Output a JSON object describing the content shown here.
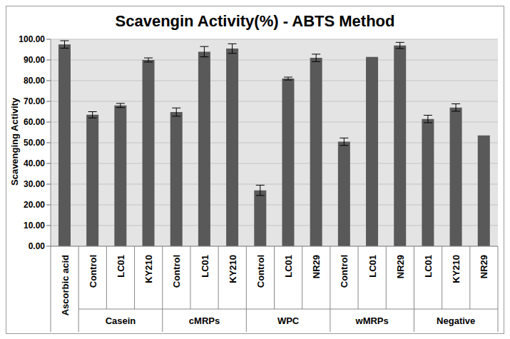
{
  "chart_data": {
    "type": "bar",
    "title": "Scavengin Activity(%) - ABTS Method",
    "y_label": "Scavenging Activity",
    "categories": [
      "Ascorbic acid",
      "Control",
      "LC01",
      "KY210",
      "Control",
      "LC01",
      "KY210",
      "Control",
      "LC01",
      "NR29",
      "Control",
      "LC01",
      "NR29",
      "LC01",
      "KY210",
      "NR29"
    ],
    "groups": [
      null,
      "Casein",
      "Casein",
      "Casein",
      "cMRPs",
      "cMRPs",
      "cMRPs",
      "WPC",
      "WPC",
      "WPC",
      "wMRPs",
      "wMRPs",
      "wMRPs",
      "Negative",
      "Negative",
      "Negative"
    ],
    "values": [
      97.5,
      63.5,
      68,
      90,
      64.8,
      94,
      95.5,
      27,
      81,
      91,
      50.5,
      91.5,
      97,
      61.5,
      67,
      53.5
    ],
    "errors": [
      1.8,
      1.5,
      1,
      1,
      2,
      2.5,
      2.3,
      2.5,
      0.7,
      1.8,
      1.8,
      0,
      1.5,
      1.8,
      1.8,
      0
    ],
    "color": "#595959",
    "ylim": [
      0,
      100
    ],
    "yticks": [
      {
        "value": 0,
        "label": "0.00"
      },
      {
        "value": 10,
        "label": "10.00"
      },
      {
        "value": 20,
        "label": "20.00"
      },
      {
        "value": 30,
        "label": "30.00"
      },
      {
        "value": 40,
        "label": "40.00"
      },
      {
        "value": 50,
        "label": "50.00"
      },
      {
        "value": 60,
        "label": "60.00"
      },
      {
        "value": 70,
        "label": "70.00"
      },
      {
        "value": 80,
        "label": "80.00"
      },
      {
        "value": 90,
        "label": "90.00"
      },
      {
        "value": 100,
        "label": "100.00"
      }
    ],
    "grid": true
  }
}
